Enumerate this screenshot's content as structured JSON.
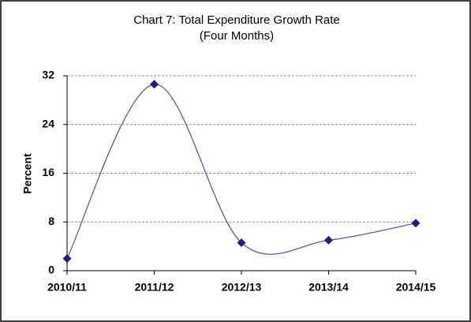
{
  "chart_data": {
    "type": "line",
    "title": "Chart 7: Total Expenditure Growth Rate",
    "subtitle": "(Four Months)",
    "y_label": "Percent",
    "categories": [
      "2010/11",
      "2011/12",
      "2012/13",
      "2013/14",
      "2014/15"
    ],
    "series": [
      {
        "name": "Total Expenditure Growth Rate",
        "color": "#1f1f7a",
        "values": [
          2.0,
          30.6,
          4.6,
          5.0,
          7.8
        ]
      }
    ],
    "ylim": [
      0,
      32
    ],
    "yticks": [
      0,
      8,
      16,
      24,
      32
    ],
    "grid": true
  }
}
